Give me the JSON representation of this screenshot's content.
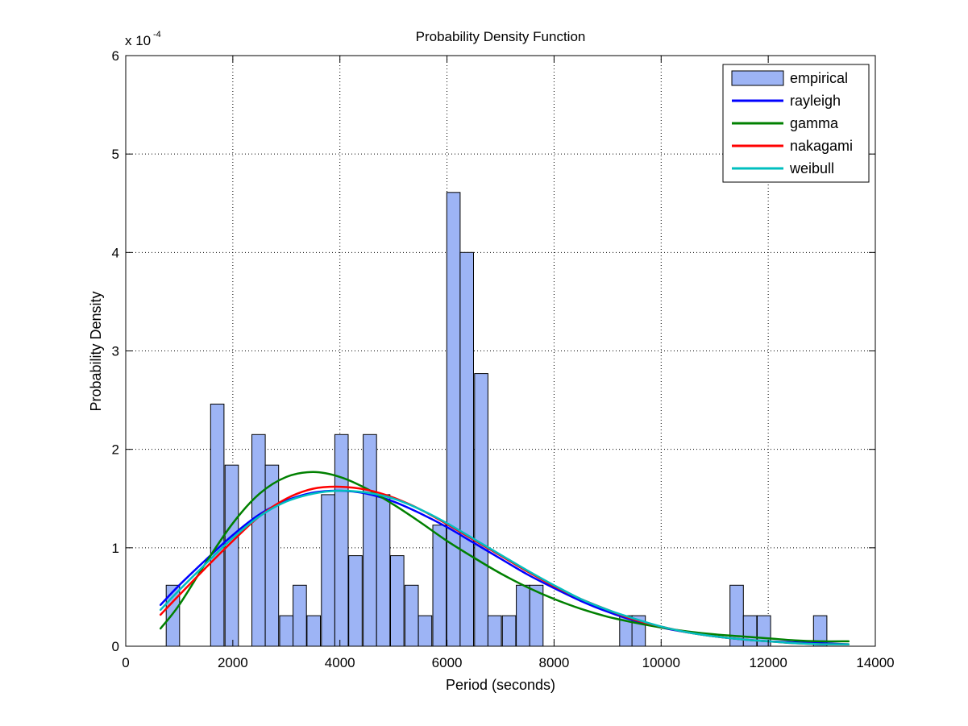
{
  "chart_data": {
    "type": "bar",
    "title": "Probability Density Function",
    "xlabel": "Period (seconds)",
    "ylabel": "Probability Density",
    "y_exponent_label": {
      "base": "x 10",
      "exp": "-4"
    },
    "xlim": [
      0,
      14000
    ],
    "ylim": [
      0,
      6
    ],
    "x_ticks": [
      "0",
      "2000",
      "4000",
      "6000",
      "8000",
      "10000",
      "12000",
      "14000"
    ],
    "y_ticks": [
      "0",
      "1",
      "2",
      "3",
      "4",
      "5",
      "6"
    ],
    "grid": true,
    "legend_position": "top-right",
    "histogram": {
      "name": "empirical",
      "color": "#9db4f5",
      "bin_width": 290,
      "bars": [
        {
          "x": 880,
          "y": 0.62
        },
        {
          "x": 1710,
          "y": 2.46
        },
        {
          "x": 1980,
          "y": 1.84
        },
        {
          "x": 2480,
          "y": 2.15
        },
        {
          "x": 2730,
          "y": 1.84
        },
        {
          "x": 3000,
          "y": 0.31
        },
        {
          "x": 3250,
          "y": 0.62
        },
        {
          "x": 3510,
          "y": 0.31
        },
        {
          "x": 3780,
          "y": 1.54
        },
        {
          "x": 4030,
          "y": 2.15
        },
        {
          "x": 4290,
          "y": 0.92
        },
        {
          "x": 4560,
          "y": 2.15
        },
        {
          "x": 4810,
          "y": 1.54
        },
        {
          "x": 5070,
          "y": 0.92
        },
        {
          "x": 5340,
          "y": 0.62
        },
        {
          "x": 5590,
          "y": 0.31
        },
        {
          "x": 5860,
          "y": 1.23
        },
        {
          "x": 6120,
          "y": 4.61
        },
        {
          "x": 6370,
          "y": 4.0
        },
        {
          "x": 6640,
          "y": 2.77
        },
        {
          "x": 6890,
          "y": 0.31
        },
        {
          "x": 7160,
          "y": 0.31
        },
        {
          "x": 7420,
          "y": 0.62
        },
        {
          "x": 7670,
          "y": 0.62
        },
        {
          "x": 9350,
          "y": 0.31
        },
        {
          "x": 9580,
          "y": 0.31
        },
        {
          "x": 11410,
          "y": 0.62
        },
        {
          "x": 11660,
          "y": 0.31
        },
        {
          "x": 11920,
          "y": 0.31
        },
        {
          "x": 12970,
          "y": 0.31
        }
      ]
    },
    "series": [
      {
        "name": "rayleigh",
        "color": "#0000ff",
        "x": [
          650,
          1000,
          1500,
          2000,
          2500,
          3000,
          3500,
          4000,
          4500,
          5000,
          5500,
          6000,
          6500,
          7000,
          7500,
          8000,
          8500,
          9000,
          9500,
          10000,
          10500,
          11000,
          11500,
          12000,
          12500,
          13000,
          13500
        ],
        "y": [
          0.42,
          0.62,
          0.88,
          1.13,
          1.34,
          1.48,
          1.56,
          1.58,
          1.55,
          1.47,
          1.35,
          1.21,
          1.05,
          0.89,
          0.73,
          0.59,
          0.46,
          0.35,
          0.26,
          0.19,
          0.14,
          0.1,
          0.07,
          0.05,
          0.04,
          0.03,
          0.02
        ]
      },
      {
        "name": "gamma",
        "color": "#008000",
        "x": [
          650,
          1000,
          1500,
          2000,
          2500,
          3000,
          3500,
          4000,
          4500,
          5000,
          5500,
          6000,
          6500,
          7000,
          7500,
          8000,
          8500,
          9000,
          9500,
          10000,
          10500,
          11000,
          11500,
          12000,
          12500,
          13000,
          13500
        ],
        "y": [
          0.18,
          0.42,
          0.85,
          1.25,
          1.55,
          1.72,
          1.77,
          1.72,
          1.6,
          1.44,
          1.26,
          1.07,
          0.9,
          0.74,
          0.6,
          0.48,
          0.38,
          0.3,
          0.24,
          0.19,
          0.15,
          0.12,
          0.1,
          0.08,
          0.06,
          0.05,
          0.05
        ]
      },
      {
        "name": "nakagami",
        "color": "#ff0000",
        "x": [
          650,
          1000,
          1500,
          2000,
          2500,
          3000,
          3500,
          4000,
          4500,
          5000,
          5500,
          6000,
          6500,
          7000,
          7500,
          8000,
          8500,
          9000,
          9500,
          10000,
          10500,
          11000,
          11500,
          12000,
          12500,
          13000,
          13500
        ],
        "y": [
          0.32,
          0.52,
          0.8,
          1.07,
          1.32,
          1.5,
          1.6,
          1.62,
          1.59,
          1.51,
          1.39,
          1.24,
          1.08,
          0.92,
          0.76,
          0.61,
          0.48,
          0.37,
          0.27,
          0.2,
          0.14,
          0.1,
          0.07,
          0.05,
          0.03,
          0.02,
          0.02
        ]
      },
      {
        "name": "weibull",
        "color": "#00bfbf",
        "x": [
          650,
          1000,
          1500,
          2000,
          2500,
          3000,
          3500,
          4000,
          4500,
          5000,
          5500,
          6000,
          6500,
          7000,
          7500,
          8000,
          8500,
          9000,
          9500,
          10000,
          10500,
          11000,
          11500,
          12000,
          12500,
          13000,
          13500
        ],
        "y": [
          0.37,
          0.57,
          0.84,
          1.1,
          1.32,
          1.47,
          1.55,
          1.58,
          1.56,
          1.5,
          1.39,
          1.25,
          1.09,
          0.93,
          0.77,
          0.62,
          0.48,
          0.37,
          0.28,
          0.2,
          0.14,
          0.1,
          0.07,
          0.05,
          0.03,
          0.02,
          0.02
        ]
      }
    ]
  }
}
